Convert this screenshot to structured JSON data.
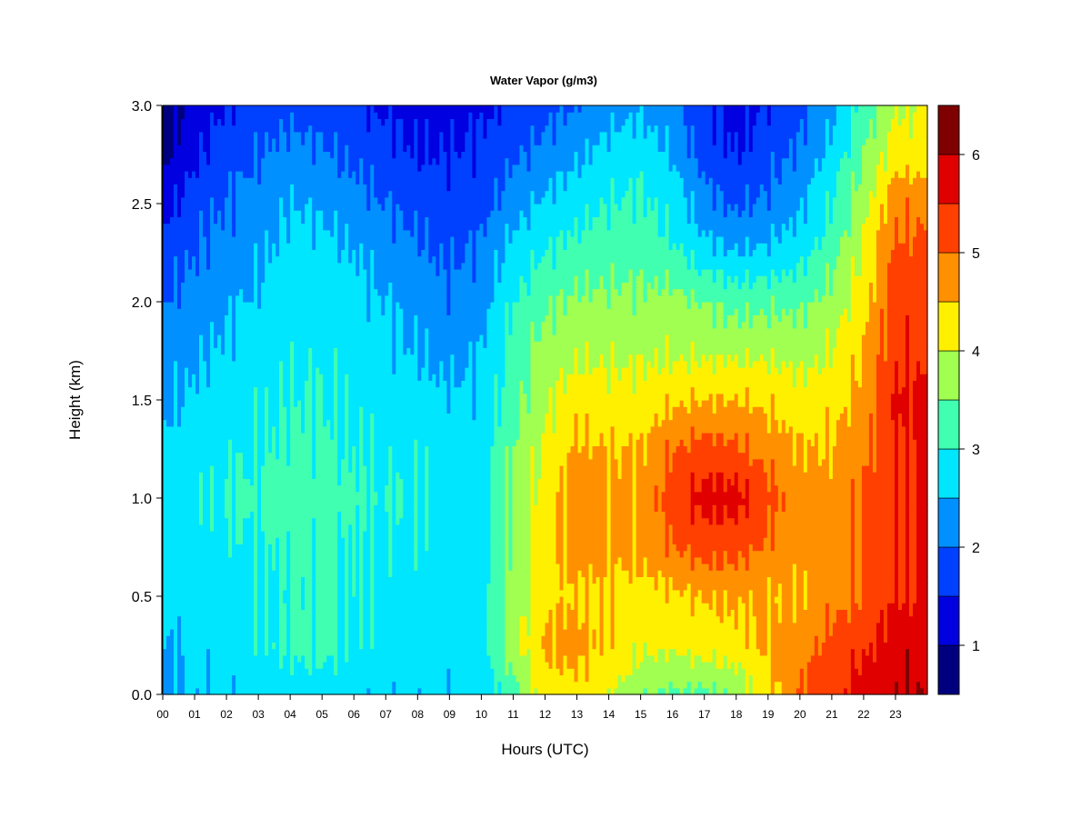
{
  "chart_data": {
    "type": "heatmap",
    "title": "Water Vapor (g/m3)",
    "xlabel": "Hours (UTC)",
    "ylabel": "Height (km)",
    "x_ticks": [
      "00",
      "01",
      "02",
      "03",
      "04",
      "05",
      "06",
      "07",
      "08",
      "09",
      "10",
      "11",
      "12",
      "13",
      "14",
      "15",
      "16",
      "17",
      "18",
      "19",
      "20",
      "21",
      "22",
      "23"
    ],
    "xlim": [
      0,
      24
    ],
    "y_ticks": [
      "0.0",
      "0.5",
      "1.0",
      "1.5",
      "2.0",
      "2.5",
      "3.0"
    ],
    "ylim": [
      0,
      3
    ],
    "colorbar": {
      "levels": [
        0.5,
        1.0,
        1.5,
        2.0,
        2.5,
        3.0,
        3.5,
        4.0,
        4.5,
        5.0,
        5.5,
        6.0,
        6.5
      ],
      "colors": [
        "#00007F",
        "#0000E0",
        "#0040FF",
        "#0090FF",
        "#00E6FF",
        "#40FFB0",
        "#A0FF50",
        "#FFF000",
        "#FF9000",
        "#FF4000",
        "#E00000",
        "#7F0000"
      ],
      "tick_labels": [
        "1",
        "2",
        "3",
        "4",
        "5",
        "6"
      ]
    },
    "grid": false,
    "values_approx": {
      "description_hours": [
        0,
        1,
        2,
        3,
        4,
        5,
        6,
        7,
        8,
        9,
        10,
        11,
        12,
        13,
        14,
        15,
        16,
        17,
        18,
        19,
        20,
        21,
        22,
        23
      ],
      "heights_km": [
        0.0,
        0.25,
        0.5,
        0.75,
        1.0,
        1.25,
        1.5,
        1.75,
        2.0,
        2.25,
        2.5,
        2.75,
        3.0
      ],
      "z": [
        [
          2.3,
          2.6,
          2.6,
          2.7,
          2.7,
          2.7,
          2.6,
          2.6,
          2.6,
          2.6,
          2.7,
          3.3,
          4.2,
          4.3,
          4.1,
          3.6,
          3.4,
          3.4,
          3.6,
          4.3,
          5.0,
          5.3,
          5.8,
          6.0
        ],
        [
          2.5,
          2.6,
          2.7,
          2.9,
          3.1,
          3.2,
          2.9,
          2.9,
          2.8,
          2.7,
          2.8,
          3.8,
          4.6,
          4.7,
          4.4,
          4.1,
          4.1,
          4.2,
          4.3,
          4.6,
          4.8,
          5.2,
          5.4,
          5.8
        ],
        [
          2.6,
          2.7,
          2.8,
          2.9,
          3.0,
          3.1,
          3.0,
          2.9,
          2.8,
          2.7,
          2.8,
          3.7,
          4.3,
          4.5,
          4.4,
          4.3,
          4.4,
          4.5,
          4.6,
          4.5,
          4.5,
          4.8,
          5.0,
          5.5
        ],
        [
          2.7,
          2.8,
          2.9,
          3.0,
          3.1,
          3.1,
          3.0,
          2.9,
          2.9,
          2.8,
          2.8,
          3.6,
          4.3,
          4.7,
          4.6,
          4.6,
          5.0,
          5.2,
          5.2,
          4.9,
          4.7,
          4.7,
          5.0,
          5.5
        ],
        [
          2.7,
          2.9,
          3.0,
          3.1,
          3.3,
          3.2,
          3.1,
          3.0,
          2.9,
          2.8,
          2.8,
          3.5,
          4.2,
          4.8,
          4.6,
          4.6,
          5.3,
          5.7,
          5.7,
          5.2,
          4.8,
          4.7,
          5.0,
          5.5
        ],
        [
          2.6,
          2.8,
          2.9,
          3.0,
          3.1,
          3.1,
          3.0,
          2.9,
          2.9,
          2.8,
          2.8,
          3.5,
          4.1,
          4.6,
          4.5,
          4.5,
          5.0,
          5.2,
          5.1,
          4.8,
          4.5,
          4.5,
          4.9,
          5.5
        ],
        [
          2.4,
          2.6,
          2.8,
          2.9,
          3.0,
          3.0,
          2.9,
          2.8,
          2.7,
          2.6,
          2.6,
          3.3,
          3.9,
          4.3,
          4.2,
          4.2,
          4.4,
          4.5,
          4.5,
          4.4,
          4.2,
          4.3,
          4.7,
          5.6
        ],
        [
          2.2,
          2.4,
          2.6,
          2.7,
          2.9,
          2.9,
          2.8,
          2.6,
          2.5,
          2.3,
          2.5,
          3.2,
          3.7,
          3.9,
          3.9,
          3.9,
          3.9,
          3.9,
          3.9,
          3.9,
          3.8,
          4.0,
          4.5,
          5.4
        ],
        [
          2.0,
          2.2,
          2.4,
          2.6,
          2.8,
          2.8,
          2.7,
          2.5,
          2.3,
          2.1,
          2.3,
          3.0,
          3.4,
          3.6,
          3.6,
          3.6,
          3.7,
          3.5,
          3.3,
          3.4,
          3.4,
          3.7,
          4.3,
          5.3
        ],
        [
          1.7,
          2.0,
          2.2,
          2.4,
          2.7,
          2.7,
          2.5,
          2.3,
          2.1,
          1.9,
          2.1,
          2.7,
          3.0,
          3.2,
          3.3,
          3.3,
          3.1,
          2.7,
          2.5,
          2.6,
          2.8,
          3.3,
          4.1,
          5.1
        ],
        [
          1.3,
          1.8,
          2.0,
          2.2,
          2.5,
          2.4,
          2.2,
          2.0,
          1.8,
          1.7,
          1.8,
          2.3,
          2.6,
          2.8,
          3.0,
          3.1,
          2.8,
          2.2,
          1.9,
          2.1,
          2.4,
          3.0,
          3.8,
          4.9
        ],
        [
          0.9,
          1.4,
          1.8,
          2.0,
          2.2,
          2.1,
          1.9,
          1.7,
          1.5,
          1.5,
          1.6,
          1.9,
          2.2,
          2.4,
          2.7,
          2.8,
          2.5,
          1.8,
          1.5,
          1.8,
          2.1,
          2.7,
          3.5,
          4.2
        ],
        [
          0.6,
          1.2,
          1.5,
          1.7,
          1.8,
          1.7,
          1.6,
          1.4,
          1.3,
          1.3,
          1.4,
          1.6,
          1.8,
          2.0,
          2.3,
          2.4,
          2.1,
          1.5,
          1.3,
          1.5,
          1.8,
          2.3,
          3.2,
          4.0
        ]
      ]
    }
  }
}
